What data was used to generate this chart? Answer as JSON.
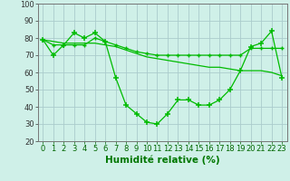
{
  "background_color": "#cff0e8",
  "grid_color": "#aacccc",
  "line_color": "#00bb00",
  "xlabel": "Humidité relative (%)",
  "xlabel_color": "#007700",
  "ylim": [
    20,
    100
  ],
  "xlim": [
    -0.5,
    23.5
  ],
  "yticks": [
    20,
    30,
    40,
    50,
    60,
    70,
    80,
    90,
    100
  ],
  "xticks": [
    0,
    1,
    2,
    3,
    4,
    5,
    6,
    7,
    8,
    9,
    10,
    11,
    12,
    13,
    14,
    15,
    16,
    17,
    18,
    19,
    20,
    21,
    22,
    23
  ],
  "series1": [
    79,
    70,
    76,
    83,
    80,
    83,
    78,
    57,
    41,
    36,
    31,
    30,
    36,
    44,
    44,
    41,
    41,
    44,
    50,
    61,
    75,
    77,
    84,
    57
  ],
  "series2": [
    79,
    76,
    76,
    76,
    76,
    80,
    78,
    76,
    74,
    72,
    71,
    70,
    70,
    70,
    70,
    70,
    70,
    70,
    70,
    70,
    74,
    74,
    74,
    74
  ],
  "series3": [
    79,
    78,
    77,
    77,
    77,
    77,
    76,
    75,
    73,
    71,
    69,
    68,
    67,
    66,
    65,
    64,
    63,
    63,
    62,
    61,
    61,
    61,
    60,
    58
  ],
  "tick_fontsize": 6,
  "xlabel_fontsize": 7.5
}
